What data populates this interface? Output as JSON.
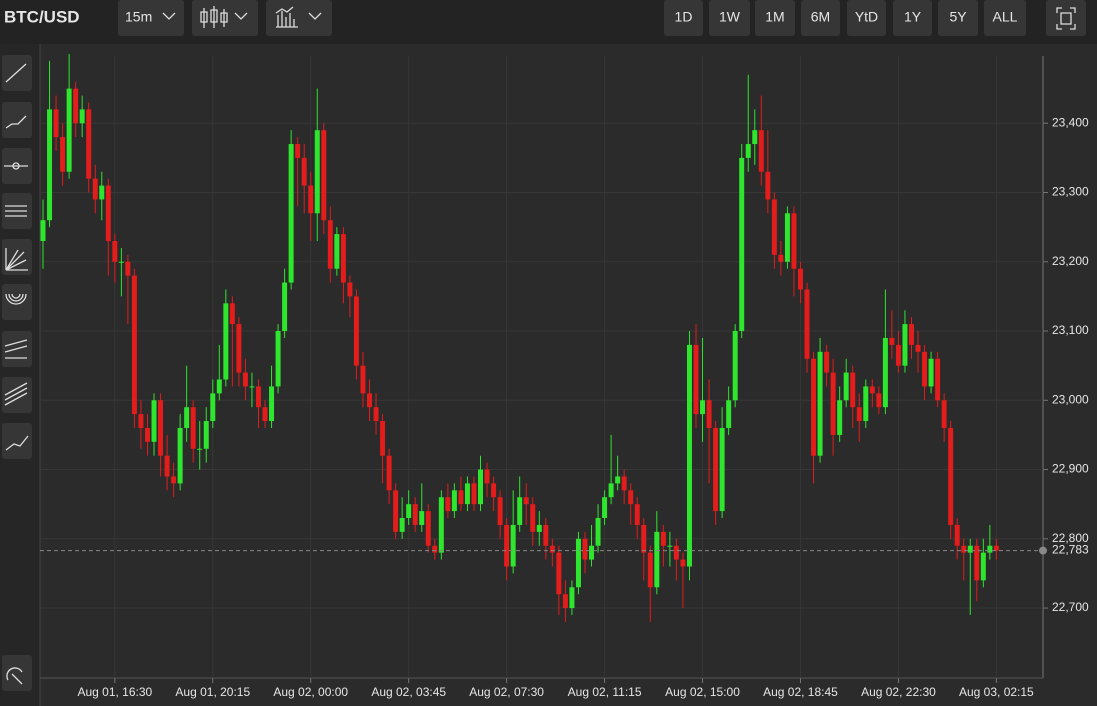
{
  "toolbar": {
    "symbol": "BTC/USD",
    "interval": "15m",
    "ranges": [
      "1D",
      "1W",
      "1M",
      "6M",
      "YtD",
      "1Y",
      "5Y",
      "ALL"
    ]
  },
  "chart_data": {
    "type": "candlestick",
    "up_color": "#2ee62e",
    "down_color": "#e31c1c",
    "grid": true,
    "ylim": [
      22599,
      23513
    ],
    "yticks": [
      {
        "value": 22700,
        "label": "22,700"
      },
      {
        "value": 22800,
        "label": "22,800"
      },
      {
        "value": 22900,
        "label": "22,900"
      },
      {
        "value": 23000,
        "label": "23,000"
      },
      {
        "value": 23100,
        "label": "23,100"
      },
      {
        "value": 23200,
        "label": "23,200"
      },
      {
        "value": 23300,
        "label": "23,300"
      },
      {
        "value": 23400,
        "label": "23,400"
      }
    ],
    "xticks": [
      "Aug 01, 16:30",
      "Aug 01, 20:15",
      "Aug 02, 00:00",
      "Aug 02, 03:45",
      "Aug 02, 07:30",
      "Aug 02, 11:15",
      "Aug 02, 15:00",
      "Aug 02, 18:45",
      "Aug 02, 22:30",
      "Aug 03, 02:15"
    ],
    "last_price": {
      "value": 22783,
      "label": "22,783"
    },
    "x": [
      "Aug 01, 13:45",
      "Aug 01, 14:00",
      "Aug 01, 14:15",
      "Aug 01, 14:30",
      "Aug 01, 14:45",
      "Aug 01, 15:00",
      "Aug 01, 15:15",
      "Aug 01, 15:30",
      "Aug 01, 15:45",
      "Aug 01, 16:00",
      "Aug 01, 16:15",
      "Aug 01, 16:30",
      "Aug 01, 16:45",
      "Aug 01, 17:00",
      "Aug 01, 17:15",
      "Aug 01, 17:30",
      "Aug 01, 17:45",
      "Aug 01, 18:00",
      "Aug 01, 18:15",
      "Aug 01, 18:30",
      "Aug 01, 18:45",
      "Aug 01, 19:00",
      "Aug 01, 19:15",
      "Aug 01, 19:30",
      "Aug 01, 19:45",
      "Aug 01, 20:00",
      "Aug 01, 20:15",
      "Aug 01, 20:30",
      "Aug 01, 20:45",
      "Aug 01, 21:00",
      "Aug 01, 21:15",
      "Aug 01, 21:30",
      "Aug 01, 21:45",
      "Aug 01, 22:00",
      "Aug 01, 22:15",
      "Aug 01, 22:30",
      "Aug 01, 22:45",
      "Aug 01, 23:00",
      "Aug 01, 23:15",
      "Aug 01, 23:30",
      "Aug 01, 23:45",
      "Aug 02, 00:00",
      "Aug 02, 00:15",
      "Aug 02, 00:30",
      "Aug 02, 00:45",
      "Aug 02, 01:00",
      "Aug 02, 01:15",
      "Aug 02, 01:30",
      "Aug 02, 01:45",
      "Aug 02, 02:00",
      "Aug 02, 02:15",
      "Aug 02, 02:30",
      "Aug 02, 02:45",
      "Aug 02, 03:00",
      "Aug 02, 03:15",
      "Aug 02, 03:30",
      "Aug 02, 03:45",
      "Aug 02, 04:00",
      "Aug 02, 04:15",
      "Aug 02, 04:30",
      "Aug 02, 04:45",
      "Aug 02, 05:00",
      "Aug 02, 05:15",
      "Aug 02, 05:30",
      "Aug 02, 05:45",
      "Aug 02, 06:00",
      "Aug 02, 06:15",
      "Aug 02, 06:30",
      "Aug 02, 06:45",
      "Aug 02, 07:00",
      "Aug 02, 07:15",
      "Aug 02, 07:30",
      "Aug 02, 07:45",
      "Aug 02, 08:00",
      "Aug 02, 08:15",
      "Aug 02, 08:30",
      "Aug 02, 08:45",
      "Aug 02, 09:00",
      "Aug 02, 09:15",
      "Aug 02, 09:30",
      "Aug 02, 09:45",
      "Aug 02, 10:00",
      "Aug 02, 10:15",
      "Aug 02, 10:30",
      "Aug 02, 10:45",
      "Aug 02, 11:00",
      "Aug 02, 11:15",
      "Aug 02, 11:30",
      "Aug 02, 11:45",
      "Aug 02, 12:00",
      "Aug 02, 12:15",
      "Aug 02, 12:30",
      "Aug 02, 12:45",
      "Aug 02, 13:00",
      "Aug 02, 13:15",
      "Aug 02, 13:30",
      "Aug 02, 13:45",
      "Aug 02, 14:00",
      "Aug 02, 14:15",
      "Aug 02, 14:30",
      "Aug 02, 14:45",
      "Aug 02, 15:00",
      "Aug 02, 15:15",
      "Aug 02, 15:30",
      "Aug 02, 15:45",
      "Aug 02, 16:00",
      "Aug 02, 16:15",
      "Aug 02, 16:30",
      "Aug 02, 16:45",
      "Aug 02, 17:00",
      "Aug 02, 17:15",
      "Aug 02, 17:30",
      "Aug 02, 17:45",
      "Aug 02, 18:00",
      "Aug 02, 18:15",
      "Aug 02, 18:30",
      "Aug 02, 18:45",
      "Aug 02, 19:00",
      "Aug 02, 19:15",
      "Aug 02, 19:30",
      "Aug 02, 19:45",
      "Aug 02, 20:00",
      "Aug 02, 20:15",
      "Aug 02, 20:30",
      "Aug 02, 20:45",
      "Aug 02, 21:00",
      "Aug 02, 21:15",
      "Aug 02, 21:30",
      "Aug 02, 21:45",
      "Aug 02, 22:00",
      "Aug 02, 22:15",
      "Aug 02, 22:30",
      "Aug 02, 22:45",
      "Aug 02, 23:00",
      "Aug 02, 23:15",
      "Aug 02, 23:30",
      "Aug 02, 23:45",
      "Aug 03, 00:00",
      "Aug 03, 00:15",
      "Aug 03, 00:30",
      "Aug 03, 00:45",
      "Aug 03, 01:00",
      "Aug 03, 01:15",
      "Aug 03, 01:30",
      "Aug 03, 01:45",
      "Aug 03, 02:00",
      "Aug 03, 02:15"
    ],
    "open": [
      23230,
      23260,
      23420,
      23380,
      23330,
      23450,
      23400,
      23420,
      23320,
      23290,
      23310,
      23230,
      23200,
      23200,
      23180,
      22980,
      22960,
      22940,
      23000,
      22920,
      22890,
      22880,
      22960,
      22990,
      22930,
      22930,
      22970,
      23010,
      23030,
      23140,
      23110,
      23040,
      23020,
      23020,
      22990,
      22970,
      23020,
      23100,
      23170,
      23370,
      23350,
      23310,
      23270,
      23390,
      23260,
      23190,
      23240,
      23170,
      23150,
      23050,
      23010,
      22990,
      22970,
      22920,
      22870,
      22810,
      22830,
      22850,
      22820,
      22840,
      22790,
      22780,
      22860,
      22840,
      22870,
      22850,
      22880,
      22850,
      22900,
      22880,
      22860,
      22820,
      22760,
      22820,
      22860,
      22850,
      22810,
      22820,
      22790,
      22780,
      22720,
      22700,
      22730,
      22800,
      22770,
      22790,
      22830,
      22860,
      22880,
      22890,
      22870,
      22850,
      22820,
      22780,
      22730,
      22810,
      22790,
      22790,
      22770,
      22760,
      23080,
      22980,
      23000,
      22960,
      22840,
      22960,
      23000,
      23100,
      23350,
      23370,
      23390,
      23330,
      23290,
      23210,
      23200,
      23270,
      23190,
      23160,
      23060,
      22920,
      23070,
      23040,
      22950,
      23000,
      23040,
      22990,
      22970,
      23020,
      23010,
      22990,
      23090,
      23080,
      23050,
      23110,
      23080,
      23070,
      23020,
      23060,
      23000,
      22960,
      22820,
      22790,
      22780,
      22790,
      22740,
      22780,
      22790
    ],
    "high": [
      23290,
      23490,
      23440,
      23400,
      23500,
      23460,
      23440,
      23430,
      23340,
      23330,
      23320,
      23240,
      23220,
      23210,
      23190,
      23000,
      22980,
      23010,
      23010,
      22950,
      22910,
      22980,
      23050,
      23000,
      22970,
      22990,
      23030,
      23080,
      23160,
      23150,
      23120,
      23060,
      23040,
      23030,
      23000,
      23050,
      23110,
      23190,
      23390,
      23380,
      23370,
      23330,
      23450,
      23400,
      23280,
      23250,
      23250,
      23180,
      23160,
      23070,
      23030,
      23010,
      22980,
      22930,
      22880,
      22860,
      22870,
      22860,
      22880,
      22850,
      22800,
      22870,
      22880,
      22880,
      22890,
      22890,
      22890,
      22920,
      22910,
      22890,
      22870,
      22830,
      22870,
      22890,
      22880,
      22860,
      22840,
      22830,
      22800,
      22790,
      22740,
      22740,
      22810,
      22810,
      22820,
      22850,
      22870,
      22950,
      22920,
      22900,
      22880,
      22860,
      22830,
      22790,
      22840,
      22820,
      22810,
      22800,
      22780,
      23100,
      23110,
      23090,
      23030,
      22970,
      22990,
      23020,
      23110,
      23370,
      23470,
      23420,
      23440,
      23390,
      23300,
      23230,
      23280,
      23280,
      23200,
      23170,
      23070,
      23090,
      23080,
      23060,
      23020,
      23060,
      23050,
      23010,
      23030,
      23030,
      23020,
      23160,
      23130,
      23100,
      23130,
      23120,
      23100,
      23080,
      23070,
      23070,
      23010,
      22970,
      22830,
      22800,
      22800,
      22800,
      22800,
      22820,
      22800
    ],
    "low": [
      23190,
      23250,
      23360,
      23310,
      23320,
      23380,
      23380,
      23300,
      23270,
      23260,
      23180,
      23170,
      23150,
      23110,
      22960,
      22930,
      22920,
      22920,
      22890,
      22870,
      22860,
      22870,
      22940,
      22910,
      22900,
      22910,
      22960,
      23000,
      23020,
      23020,
      23020,
      23000,
      22990,
      22960,
      22960,
      22960,
      23010,
      23090,
      23160,
      23280,
      23270,
      23230,
      23230,
      23240,
      23170,
      23180,
      23140,
      23120,
      23030,
      22990,
      22970,
      22950,
      22880,
      22850,
      22800,
      22800,
      22820,
      22810,
      22810,
      22780,
      22770,
      22770,
      22830,
      22830,
      22840,
      22840,
      22840,
      22840,
      22860,
      22840,
      22800,
      22740,
      22750,
      22810,
      22820,
      22790,
      22790,
      22770,
      22760,
      22690,
      22680,
      22690,
      22720,
      22750,
      22760,
      22780,
      22820,
      22850,
      22870,
      22850,
      22820,
      22800,
      22740,
      22680,
      22720,
      22760,
      22760,
      22740,
      22700,
      22740,
      22960,
      22940,
      22880,
      22820,
      22830,
      22950,
      22990,
      23090,
      23330,
      23340,
      23310,
      23270,
      23190,
      23180,
      23190,
      23150,
      23140,
      23040,
      22880,
      22910,
      23020,
      22920,
      22940,
      22990,
      22960,
      22940,
      22960,
      22990,
      22980,
      22980,
      23060,
      23040,
      23040,
      23060,
      23040,
      23000,
      23010,
      22990,
      22940,
      22800,
      22770,
      22740,
      22690,
      22710,
      22730,
      22770,
      22770
    ],
    "close": [
      23260,
      23420,
      23380,
      23330,
      23450,
      23400,
      23420,
      23320,
      23290,
      23310,
      23230,
      23200,
      23200,
      23180,
      22980,
      22960,
      22940,
      23000,
      22920,
      22890,
      22880,
      22960,
      22990,
      22930,
      22930,
      22970,
      23010,
      23030,
      23140,
      23110,
      23040,
      23020,
      23020,
      22990,
      22970,
      23020,
      23100,
      23170,
      23370,
      23350,
      23310,
      23270,
      23390,
      23260,
      23190,
      23240,
      23170,
      23150,
      23050,
      23010,
      22990,
      22970,
      22920,
      22870,
      22810,
      22830,
      22850,
      22820,
      22840,
      22790,
      22780,
      22860,
      22840,
      22870,
      22850,
      22880,
      22850,
      22900,
      22880,
      22860,
      22820,
      22760,
      22820,
      22860,
      22850,
      22810,
      22820,
      22790,
      22780,
      22720,
      22700,
      22730,
      22800,
      22770,
      22790,
      22830,
      22860,
      22880,
      22890,
      22870,
      22850,
      22820,
      22780,
      22730,
      22810,
      22790,
      22790,
      22770,
      22760,
      23080,
      22980,
      23000,
      22960,
      22840,
      22960,
      23000,
      23100,
      23350,
      23370,
      23390,
      23330,
      23290,
      23210,
      23200,
      23270,
      23190,
      23160,
      23060,
      22920,
      23070,
      23040,
      22950,
      23000,
      23040,
      22990,
      22970,
      23020,
      23010,
      22990,
      23090,
      23080,
      23050,
      23110,
      23080,
      23070,
      23020,
      23060,
      23000,
      22960,
      22820,
      22790,
      22780,
      22790,
      22740,
      22780,
      22790,
      22783
    ]
  }
}
